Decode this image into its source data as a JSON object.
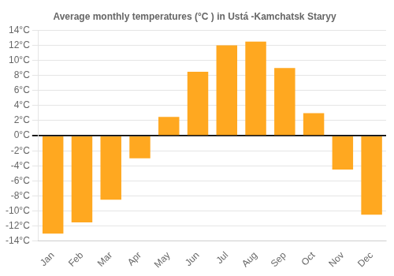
{
  "chart_data": {
    "type": "bar",
    "title": "Average monthly temperatures (°C ) in Ustа́ -Kamchatsk Staryy",
    "categories": [
      "Jan",
      "Feb",
      "Mar",
      "Apr",
      "May",
      "Jun",
      "Jul",
      "Aug",
      "Sep",
      "Oct",
      "Nov",
      "Dec"
    ],
    "values": [
      -13.0,
      -11.5,
      -8.5,
      -3.0,
      2.5,
      8.5,
      12.0,
      12.5,
      9.0,
      3.0,
      -4.5,
      -10.5
    ],
    "color": "#FFA820",
    "ylim": [
      -14,
      14
    ],
    "yticks": [
      {
        "value": -14,
        "label": "-14°C"
      },
      {
        "value": -12,
        "label": "-12°C"
      },
      {
        "value": -10,
        "label": "-10°C"
      },
      {
        "value": -8,
        "label": "-8°C"
      },
      {
        "value": -6,
        "label": "-6°C"
      },
      {
        "value": -4,
        "label": "-4°C"
      },
      {
        "value": -2,
        "label": "-2°C"
      },
      {
        "value": 0,
        "label": "0°C"
      },
      {
        "value": 2,
        "label": "2°C"
      },
      {
        "value": 4,
        "label": "4°C"
      },
      {
        "value": 6,
        "label": "6°C"
      },
      {
        "value": 8,
        "label": "8°C"
      },
      {
        "value": 10,
        "label": "10°C"
      },
      {
        "value": 12,
        "label": "12°C"
      },
      {
        "value": 14,
        "label": "14°C"
      }
    ],
    "grid": true
  }
}
